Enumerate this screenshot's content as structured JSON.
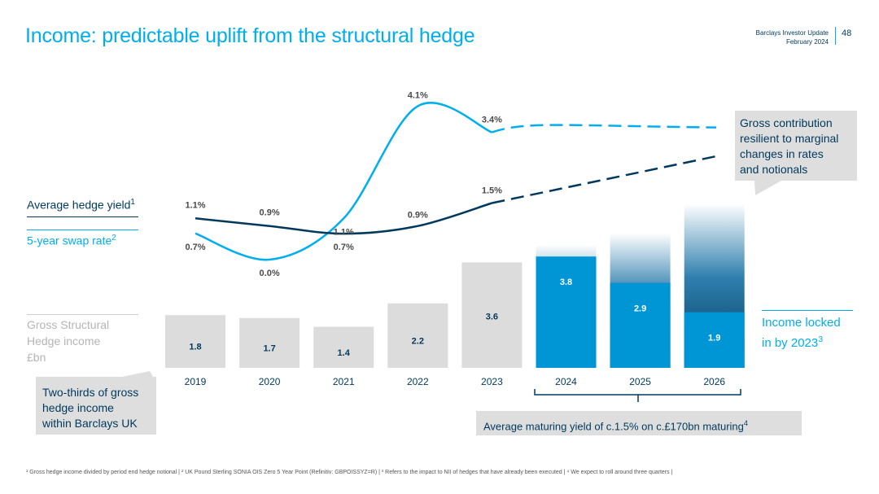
{
  "header": {
    "title": "Income: predictable uplift from the structural hedge",
    "brand_line1": "Barclays Investor Update",
    "brand_line2": "February 2024",
    "page_number": "48"
  },
  "legend": {
    "avg_hedge_yield": "Average hedge yield",
    "avg_hedge_yield_sup": "1",
    "swap_rate": "5-year swap rate",
    "swap_rate_sup": "2",
    "gross_line1": "Gross Structural",
    "gross_line2": "Hedge income",
    "gross_line3": "£bn"
  },
  "callouts": {
    "left_line1": "Two-thirds of gross",
    "left_line2": "hedge income",
    "left_line3": "within Barclays UK",
    "right_line1": "Gross contribution",
    "right_line2": "resilient to marginal",
    "right_line3": "changes in rates",
    "right_line4": "and notionals",
    "bottom": "Average maturing yield of c.1.5% on c.£170bn maturing",
    "bottom_sup": "4"
  },
  "locked": {
    "line1": "Income locked",
    "line2": "in by 2023",
    "sup": "3"
  },
  "footnote": "¹ Gross hedge income divided by period end hedge notional | ² UK Pound Sterling SONIA OIS Zero 5 Year Point (Refinitiv: GBPOISSYZ=R) | ³ Refers to the impact to NII of hedges that have already been executed | ⁴ We expect to roll around three quarters |",
  "colors": {
    "navy": "#00395d",
    "cyan": "#00aeef",
    "grey_bar": "#dcdcdc",
    "locked_bar": "#0096d6"
  },
  "chart_data": {
    "type": "bar",
    "categories": [
      "2019",
      "2020",
      "2021",
      "2022",
      "2023",
      "2024",
      "2025",
      "2026"
    ],
    "bars": {
      "gross_income_bn": [
        1.8,
        1.7,
        1.4,
        2.2,
        3.6,
        null,
        null,
        null
      ],
      "locked_in_bn": [
        null,
        null,
        null,
        null,
        null,
        3.8,
        2.9,
        1.9
      ],
      "projected_gradient_top": [
        null,
        null,
        null,
        null,
        null,
        4.2,
        4.6,
        5.6
      ]
    },
    "avg_hedge_yield": {
      "labels": [
        "1.1%",
        "0.9%",
        "0.7%",
        "0.9%",
        "1.5%"
      ],
      "values": [
        1.1,
        0.9,
        0.7,
        0.9,
        1.5
      ],
      "label_categories": [
        "2019",
        "2020",
        "2021",
        "2022",
        "2023"
      ],
      "dashed_from": "2023"
    },
    "swap_rate": {
      "labels": [
        "0.7%",
        "0.0%",
        "1.1%",
        "4.1%",
        "3.4%"
      ],
      "values": [
        0.7,
        0.0,
        1.1,
        4.1,
        3.4
      ],
      "label_categories": [
        "2019",
        "2020",
        "2021",
        "2022",
        "2023"
      ],
      "dashed_from": "2023"
    }
  }
}
